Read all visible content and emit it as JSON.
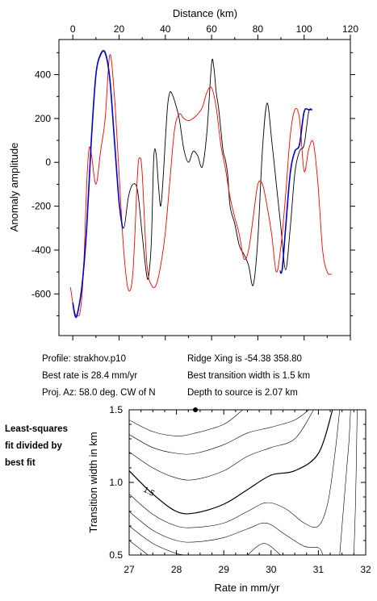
{
  "chart_data": [
    {
      "type": "line",
      "title": "",
      "xlabel": "Distance (km)",
      "ylabel": "Anomaly amplitude",
      "xlim": [
        -6,
        120
      ],
      "ylim": [
        -790,
        560
      ],
      "xticks": [
        0,
        20,
        40,
        60,
        80,
        100,
        120
      ],
      "yticks": [
        -600,
        -400,
        -200,
        0,
        200,
        400
      ],
      "x_axis_position": "top",
      "grid": false,
      "series": [
        {
          "color": "#000000",
          "x": [
            0,
            1,
            2,
            4,
            6,
            8,
            10,
            12,
            14,
            16,
            18,
            20,
            22,
            24,
            26,
            28,
            30,
            32,
            33,
            34,
            35,
            36,
            37,
            38,
            39,
            40,
            41,
            42,
            43,
            44,
            46,
            48,
            50,
            52,
            54,
            56,
            58,
            60,
            61,
            62,
            63,
            64,
            65,
            66,
            67,
            68,
            70,
            72,
            74,
            76,
            78,
            80,
            82,
            84,
            86,
            88,
            90,
            92,
            94,
            96,
            98,
            100,
            102,
            103.5
          ],
          "y": [
            -650,
            -700,
            -690,
            -560,
            -300,
            100,
            400,
            495,
            495,
            380,
            100,
            -180,
            -300,
            -160,
            -100,
            -130,
            -330,
            -520,
            -500,
            -350,
            20,
            40,
            -100,
            -200,
            -80,
            100,
            260,
            320,
            310,
            280,
            200,
            60,
            0,
            50,
            30,
            -20,
            140,
            450,
            430,
            320,
            250,
            150,
            50,
            10,
            -60,
            -200,
            -280,
            -380,
            -420,
            -470,
            -560,
            -350,
            60,
            270,
            100,
            -100,
            -300,
            -490,
            -300,
            -50,
            50,
            80,
            230,
            240
          ]
        },
        {
          "color": "#ff0000",
          "x": [
            -1,
            0,
            1,
            2,
            3,
            4,
            5,
            6,
            7,
            8,
            10,
            12,
            14,
            16,
            18,
            20,
            22,
            24,
            26,
            28,
            29,
            30,
            32,
            34,
            36,
            38,
            40,
            42,
            44,
            46,
            48,
            50,
            52,
            54,
            56,
            58,
            60,
            62,
            64,
            66,
            68,
            70,
            72,
            74,
            76,
            78,
            80,
            82,
            84,
            86,
            88,
            90,
            92,
            94,
            96,
            98,
            100,
            102,
            104,
            106,
            108,
            110,
            112
          ],
          "y": [
            -570,
            -640,
            -690,
            -700,
            -690,
            -600,
            -400,
            -100,
            60,
            40,
            -100,
            50,
            200,
            490,
            300,
            -50,
            -400,
            -580,
            -500,
            -50,
            20,
            -50,
            -460,
            -560,
            -560,
            -470,
            -320,
            -80,
            150,
            220,
            200,
            190,
            200,
            220,
            250,
            320,
            340,
            250,
            80,
            -30,
            -160,
            -250,
            -330,
            -440,
            -400,
            -250,
            -100,
            -100,
            -200,
            -330,
            -500,
            -380,
            -150,
            120,
            240,
            200,
            -40,
            60,
            90,
            -100,
            -400,
            -500,
            -510
          ]
        },
        {
          "color": "#0000cc",
          "x": [
            0,
            1,
            2,
            4,
            6,
            8,
            10,
            12,
            14,
            16,
            18,
            20,
            21.5
          ],
          "y": [
            -640,
            -700,
            -690,
            -560,
            -300,
            100,
            400,
            490,
            500,
            380,
            100,
            -180,
            -300
          ]
        },
        {
          "color": "#0000cc",
          "x": [
            89.5,
            90.5,
            92,
            94,
            96,
            98,
            100,
            102,
            103.5
          ],
          "y": [
            -495,
            -490,
            -300,
            -50,
            50,
            80,
            230,
            240,
            240
          ]
        }
      ]
    },
    {
      "type": "contour",
      "xlabel": "Rate in mm/yr",
      "ylabel": "Transition width in km",
      "xlim": [
        27,
        32
      ],
      "ylim": [
        0.5,
        1.5
      ],
      "xticks": [
        27,
        28,
        29,
        30,
        31,
        32
      ],
      "yticks": [
        0.5,
        1.0,
        1.5
      ],
      "contour_label": "1.5",
      "best_fit_point": {
        "x": 28.4,
        "y": 1.5
      },
      "contours": [
        {
          "width": 1.2,
          "points": [
            [
              27,
              1.08
            ],
            [
              27.5,
              0.92
            ],
            [
              28,
              0.8
            ],
            [
              28.4,
              0.79
            ],
            [
              29,
              0.85
            ],
            [
              29.5,
              0.95
            ],
            [
              30,
              1.05
            ],
            [
              30.5,
              1.08
            ],
            [
              31,
              1.2
            ],
            [
              31.3,
              1.5
            ]
          ]
        },
        {
          "width": 0.6,
          "points": [
            [
              27,
              1.43
            ],
            [
              27.5,
              1.35
            ],
            [
              28,
              1.32
            ],
            [
              28.4,
              1.34
            ],
            [
              29,
              1.4
            ],
            [
              29.4,
              1.5
            ]
          ]
        },
        {
          "width": 0.6,
          "points": [
            [
              27,
              1.33
            ],
            [
              27.5,
              1.24
            ],
            [
              28,
              1.2
            ],
            [
              28.4,
              1.2
            ],
            [
              29,
              1.26
            ],
            [
              29.5,
              1.34
            ],
            [
              30,
              1.38
            ],
            [
              30.5,
              1.43
            ],
            [
              30.8,
              1.5
            ]
          ]
        },
        {
          "width": 0.6,
          "points": [
            [
              27,
              1.21
            ],
            [
              27.5,
              1.1
            ],
            [
              28,
              1.03
            ],
            [
              28.4,
              1.02
            ],
            [
              29,
              1.08
            ],
            [
              29.5,
              1.18
            ],
            [
              30,
              1.24
            ],
            [
              30.5,
              1.3
            ],
            [
              30.9,
              1.5
            ]
          ]
        },
        {
          "width": 0.6,
          "points": [
            [
              27,
              0.92
            ],
            [
              27.5,
              0.78
            ],
            [
              28,
              0.7
            ],
            [
              28.4,
              0.69
            ],
            [
              29,
              0.72
            ],
            [
              29.5,
              0.8
            ],
            [
              29.9,
              0.86
            ],
            [
              30.3,
              0.82
            ],
            [
              30.7,
              0.72
            ],
            [
              31,
              0.7
            ],
            [
              31.2,
              0.86
            ],
            [
              31.35,
              1.2
            ],
            [
              31.45,
              1.5
            ]
          ]
        },
        {
          "width": 0.6,
          "points": [
            [
              27,
              0.8
            ],
            [
              27.5,
              0.67
            ],
            [
              28,
              0.6
            ],
            [
              28.4,
              0.59
            ],
            [
              29,
              0.62
            ],
            [
              29.5,
              0.68
            ],
            [
              29.9,
              0.72
            ],
            [
              30.3,
              0.64
            ],
            [
              30.7,
              0.56
            ],
            [
              31,
              0.55
            ],
            [
              31.1,
              0.5
            ]
          ]
        },
        {
          "width": 0.6,
          "points": [
            [
              27,
              0.7
            ],
            [
              27.5,
              0.58
            ],
            [
              28,
              0.51
            ],
            [
              28.2,
              0.5
            ]
          ]
        },
        {
          "width": 0.6,
          "points": [
            [
              29.5,
              0.5
            ],
            [
              29.85,
              0.58
            ],
            [
              30.2,
              0.5
            ]
          ]
        },
        {
          "width": 0.6,
          "points": [
            [
              27,
              0.6
            ],
            [
              27.4,
              0.5
            ]
          ]
        },
        {
          "width": 0.6,
          "points": [
            [
              31.45,
              0.5
            ],
            [
              31.5,
              0.7
            ],
            [
              31.55,
              0.9
            ],
            [
              31.6,
              1.1
            ],
            [
              31.65,
              1.3
            ],
            [
              31.68,
              1.5
            ]
          ]
        },
        {
          "width": 0.6,
          "points": [
            [
              31.75,
              0.5
            ],
            [
              31.78,
              0.8
            ],
            [
              31.8,
              1.1
            ],
            [
              31.82,
              1.5
            ]
          ]
        }
      ]
    }
  ],
  "info": {
    "profile": "Profile: strakhov.p10",
    "rate": "Best rate is 28.4 mm/yr",
    "azimuth": "Proj. Az: 58.0 deg. CW of N",
    "ridge": "Ridge Xing is -54.38 358.80",
    "transition": "Best transition width is 1.5 km",
    "depth": "Depth to source is   2.07 km"
  },
  "side_note": [
    "Least-squares",
    "fit divided by",
    "best fit"
  ]
}
